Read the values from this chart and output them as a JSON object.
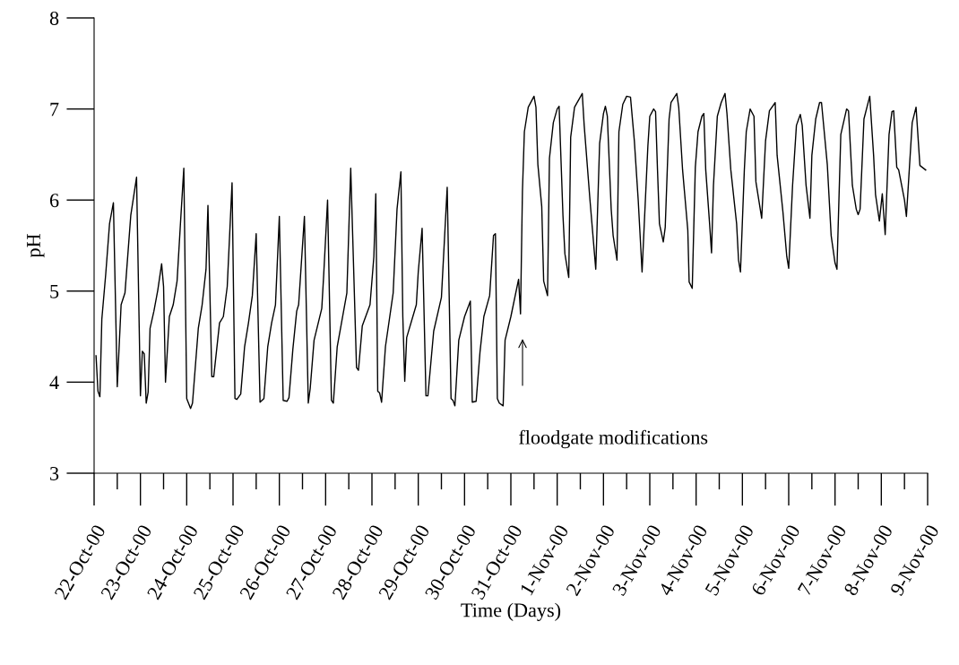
{
  "chart_data": {
    "type": "line",
    "xlabel": "Time (Days)",
    "ylabel": "pH",
    "annotations": [
      "floodgate modifications"
    ],
    "x": [
      "2000-10-22T01:00",
      "2000-10-22T02:00",
      "2000-10-22T03:00",
      "2000-10-22T04:00",
      "2000-10-22T06:00",
      "2000-10-22T08:00",
      "2000-10-22T10:00",
      "2000-10-22T12:00",
      "2000-10-22T14:00",
      "2000-10-22T16:00",
      "2000-10-22T19:00",
      "2000-10-22T22:00",
      "2000-10-23T00:00",
      "2000-10-23T01:00",
      "2000-10-23T02:00",
      "2000-10-23T03:00",
      "2000-10-23T04:00",
      "2000-10-23T05:00",
      "2000-10-23T07:00",
      "2000-10-23T09:00",
      "2000-10-23T11:00",
      "2000-10-23T12:00",
      "2000-10-23T13:00",
      "2000-10-23T15:00",
      "2000-10-23T17:00",
      "2000-10-23T19:00",
      "2000-10-23T21:00",
      "2000-10-23T22:30",
      "2000-10-24T00:00",
      "2000-10-24T02:00",
      "2000-10-24T03:00",
      "2000-10-24T06:00",
      "2000-10-24T08:00",
      "2000-10-24T10:00",
      "2000-10-24T11:00",
      "2000-10-24T13:00",
      "2000-10-24T14:00",
      "2000-10-24T17:00",
      "2000-10-24T19:00",
      "2000-10-24T21:00",
      "2000-10-24T23:30",
      "2000-10-25T01:00",
      "2000-10-25T02:00",
      "2000-10-25T04:00",
      "2000-10-25T06:00",
      "2000-10-25T08:00",
      "2000-10-25T10:00",
      "2000-10-25T12:00",
      "2000-10-25T14:00",
      "2000-10-25T16:00",
      "2000-10-25T18:00",
      "2000-10-25T20:00",
      "2000-10-25T22:00",
      "2000-10-26T00:00",
      "2000-10-26T02:00",
      "2000-10-26T04:00",
      "2000-10-26T05:00",
      "2000-10-26T07:00",
      "2000-10-26T09:00",
      "2000-10-26T10:00",
      "2000-10-26T13:00",
      "2000-10-26T15:00",
      "2000-10-26T16:00",
      "2000-10-26T18:00",
      "2000-10-26T22:00",
      "2000-10-26T23:00",
      "2000-10-27T01:00",
      "2000-10-27T03:00",
      "2000-10-27T04:00",
      "2000-10-27T06:00",
      "2000-10-27T11:00",
      "2000-10-27T13:00",
      "2000-10-27T16:00",
      "2000-10-27T17:00",
      "2000-10-27T19:00",
      "2000-10-27T23:00",
      "2000-10-28T01:00",
      "2000-10-28T02:00",
      "2000-10-28T03:00",
      "2000-10-28T04:00",
      "2000-10-28T05:00",
      "2000-10-28T07:00",
      "2000-10-28T11:00",
      "2000-10-28T13:00",
      "2000-10-28T15:00",
      "2000-10-28T16:00",
      "2000-10-28T17:00",
      "2000-10-28T18:00",
      "2000-10-28T23:00",
      "2000-10-29T00:00",
      "2000-10-29T02:00",
      "2000-10-29T04:00",
      "2000-10-29T05:00",
      "2000-10-29T08:00",
      "2000-10-29T12:00",
      "2000-10-29T15:00",
      "2000-10-29T17:00",
      "2000-10-29T18:00",
      "2000-10-29T19:00",
      "2000-10-29T21:00",
      "2000-10-30T00:00",
      "2000-10-30T03:00",
      "2000-10-30T04:00",
      "2000-10-30T06:00",
      "2000-10-30T08:00",
      "2000-10-30T10:00",
      "2000-10-30T13:00",
      "2000-10-30T15:00",
      "2000-10-30T16:00",
      "2000-10-30T17:00",
      "2000-10-30T18:00",
      "2000-10-30T20:00",
      "2000-10-30T21:00",
      "2000-10-31T00:00",
      "2000-10-31T04:00",
      "2000-10-31T05:00",
      "2000-10-31T06:00",
      "2000-10-31T07:00",
      "2000-10-31T09:00",
      "2000-10-31T12:00",
      "2000-10-31T13:00",
      "2000-10-31T14:00",
      "2000-10-31T16:00",
      "2000-10-31T17:00",
      "2000-10-31T19:00",
      "2000-10-31T20:00",
      "2000-10-31T22:00",
      "2000-11-01T00:00",
      "2000-11-01T01:00",
      "2000-11-01T03:00",
      "2000-11-01T04:00",
      "2000-11-01T06:00",
      "2000-11-01T07:00",
      "2000-11-01T09:00",
      "2000-11-01T13:00",
      "2000-11-01T14:00",
      "2000-11-01T17:00",
      "2000-11-01T20:00",
      "2000-11-01T22:00",
      "2000-11-02T00:00",
      "2000-11-02T01:00",
      "2000-11-02T02:00",
      "2000-11-02T04:00",
      "2000-11-02T05:00",
      "2000-11-02T07:00",
      "2000-11-02T08:00",
      "2000-11-02T10:00",
      "2000-11-02T12:00",
      "2000-11-02T14:00",
      "2000-11-02T16:00",
      "2000-11-02T18:00",
      "2000-11-02T20:00",
      "2000-11-02T23:00",
      "2000-11-03T00:00",
      "2000-11-03T02:00",
      "2000-11-03T03:00",
      "2000-11-03T04:00",
      "2000-11-03T05:00",
      "2000-11-03T07:00",
      "2000-11-03T08:00",
      "2000-11-03T10:00",
      "2000-11-03T11:00",
      "2000-11-03T14:00",
      "2000-11-03T15:00",
      "2000-11-03T17:00",
      "2000-11-03T19:42",
      "2000-11-03T20:24",
      "2000-11-03T22:00",
      "2000-11-03T23:36",
      "2000-11-04T01:00",
      "2000-11-04T03:00",
      "2000-11-04T04:00",
      "2000-11-04T05:00",
      "2000-11-04T07:00",
      "2000-11-04T08:00",
      "2000-11-04T09:00",
      "2000-11-04T11:00",
      "2000-11-04T13:00",
      "2000-11-04T15:00",
      "2000-11-04T16:00",
      "2000-11-04T18:00",
      "2000-11-04T21:00",
      "2000-11-04T22:00",
      "2000-11-04T23:00",
      "2000-11-05T01:00",
      "2000-11-05T02:00",
      "2000-11-05T04:00",
      "2000-11-05T06:00",
      "2000-11-05T07:00",
      "2000-11-05T10:00",
      "2000-11-05T12:00",
      "2000-11-05T14:00",
      "2000-11-05T17:00",
      "2000-11-05T18:00",
      "2000-11-05T21:00",
      "2000-11-05T23:00",
      "2000-11-06T00:00",
      "2000-11-06T02:00",
      "2000-11-06T04:00",
      "2000-11-06T06:00",
      "2000-11-06T07:00",
      "2000-11-06T09:00",
      "2000-11-06T11:00",
      "2000-11-06T12:00",
      "2000-11-06T14:00",
      "2000-11-06T16:00",
      "2000-11-06T17:00",
      "2000-11-06T20:00",
      "2000-11-06T22:00",
      "2000-11-07T00:00",
      "2000-11-07T01:00",
      "2000-11-07T03:00",
      "2000-11-07T06:00",
      "2000-11-07T07:00",
      "2000-11-07T09:00",
      "2000-11-07T11:00",
      "2000-11-07T12:00",
      "2000-11-07T13:00",
      "2000-11-07T15:00",
      "2000-11-07T18:00",
      "2000-11-07T20:00",
      "2000-11-07T21:00",
      "2000-11-07T23:00",
      "2000-11-08T00:30",
      "2000-11-08T02:00",
      "2000-11-08T04:00",
      "2000-11-08T05:30",
      "2000-11-08T06:24",
      "2000-11-08T08:00",
      "2000-11-08T09:00",
      "2000-11-08T12:00",
      "2000-11-08T13:00",
      "2000-11-08T16:00",
      "2000-11-08T18:00",
      "2000-11-08T20:00",
      "2000-11-08T23:00"
    ],
    "series": [
      {
        "color": "#000000",
        "values": [
          4.29,
          3.9,
          3.84,
          4.69,
          5.18,
          5.74,
          5.97,
          3.95,
          4.85,
          4.98,
          5.83,
          6.25,
          3.85,
          4.34,
          4.31,
          3.77,
          3.89,
          4.59,
          4.78,
          5.01,
          5.3,
          5.05,
          4.0,
          4.72,
          4.85,
          5.11,
          5.83,
          6.35,
          3.82,
          3.71,
          3.77,
          4.59,
          4.85,
          5.24,
          5.94,
          4.06,
          4.06,
          4.65,
          4.72,
          5.05,
          6.19,
          3.82,
          3.81,
          3.87,
          4.39,
          4.65,
          4.95,
          5.63,
          3.78,
          3.82,
          4.39,
          4.65,
          4.85,
          5.82,
          3.8,
          3.79,
          3.83,
          4.36,
          4.78,
          4.85,
          5.82,
          3.77,
          3.93,
          4.46,
          4.81,
          5.18,
          6.0,
          3.8,
          3.77,
          4.39,
          4.98,
          6.35,
          4.16,
          4.13,
          4.62,
          4.85,
          5.38,
          6.07,
          3.9,
          3.88,
          3.78,
          4.39,
          4.98,
          5.9,
          6.31,
          4.72,
          4.01,
          4.49,
          4.85,
          5.21,
          5.69,
          3.85,
          3.85,
          4.56,
          4.93,
          6.14,
          3.82,
          3.8,
          3.74,
          4.46,
          4.72,
          4.89,
          3.78,
          3.79,
          4.33,
          4.72,
          4.95,
          5.61,
          5.63,
          3.82,
          3.77,
          3.74,
          4.46,
          4.72,
          5.13,
          4.75,
          6.1,
          6.75,
          7.02,
          7.14,
          7.02,
          6.39,
          5.93,
          5.11,
          4.95,
          6.46,
          6.85,
          7.0,
          7.03,
          5.83,
          5.41,
          5.15,
          6.69,
          7.02,
          7.17,
          6.82,
          6.0,
          5.24,
          6.62,
          6.95,
          7.03,
          6.92,
          5.9,
          5.61,
          5.34,
          6.75,
          7.05,
          7.14,
          7.13,
          6.65,
          6.0,
          5.21,
          6.59,
          6.92,
          7.0,
          6.97,
          6.33,
          5.74,
          5.54,
          5.7,
          6.89,
          7.07,
          7.17,
          7.02,
          6.33,
          5.67,
          5.1,
          5.03,
          6.36,
          6.75,
          6.92,
          6.95,
          6.33,
          5.74,
          5.42,
          6.16,
          6.92,
          7.07,
          7.17,
          6.95,
          6.33,
          5.74,
          5.34,
          5.21,
          6.33,
          6.75,
          7.0,
          6.92,
          6.2,
          5.8,
          6.65,
          6.98,
          7.07,
          6.49,
          5.87,
          5.38,
          5.25,
          6.16,
          6.82,
          6.94,
          6.82,
          6.16,
          5.8,
          6.49,
          6.89,
          7.07,
          7.07,
          6.39,
          5.61,
          5.31,
          5.24,
          6.72,
          7.0,
          6.98,
          6.16,
          5.9,
          5.84,
          5.9,
          6.89,
          7.14,
          6.49,
          6.06,
          5.77,
          6.07,
          5.62,
          6.72,
          6.97,
          6.98,
          6.36,
          6.33,
          6.0,
          5.82,
          6.85,
          7.02,
          6.38,
          6.33
        ]
      }
    ],
    "xlim": [
      "2000-10-22",
      "2000-11-09"
    ],
    "xticks": [
      {
        "value": "2000-10-22",
        "label": "22-Oct-00"
      },
      {
        "value": "2000-10-23",
        "label": "23-Oct-00"
      },
      {
        "value": "2000-10-24",
        "label": "24-Oct-00"
      },
      {
        "value": "2000-10-25",
        "label": "25-Oct-00"
      },
      {
        "value": "2000-10-26",
        "label": "26-Oct-00"
      },
      {
        "value": "2000-10-27",
        "label": "27-Oct-00"
      },
      {
        "value": "2000-10-28",
        "label": "28-Oct-00"
      },
      {
        "value": "2000-10-29",
        "label": "29-Oct-00"
      },
      {
        "value": "2000-10-30",
        "label": "30-Oct-00"
      },
      {
        "value": "2000-10-31",
        "label": "31-Oct-00"
      },
      {
        "value": "2000-11-01",
        "label": "1-Nov-00"
      },
      {
        "value": "2000-11-02",
        "label": "2-Nov-00"
      },
      {
        "value": "2000-11-03",
        "label": "3-Nov-00"
      },
      {
        "value": "2000-11-04",
        "label": "4-Nov-00"
      },
      {
        "value": "2000-11-05",
        "label": "5-Nov-00"
      },
      {
        "value": "2000-11-06",
        "label": "6-Nov-00"
      },
      {
        "value": "2000-11-07",
        "label": "7-Nov-00"
      },
      {
        "value": "2000-11-08",
        "label": "8-Nov-00"
      },
      {
        "value": "2000-11-09",
        "label": "9-Nov-00"
      }
    ],
    "ylim": [
      3,
      8
    ],
    "yticks": [
      3,
      4,
      5,
      6,
      7,
      8
    ],
    "grid": false,
    "legend": false,
    "marker": "none",
    "line_style": "solid"
  }
}
